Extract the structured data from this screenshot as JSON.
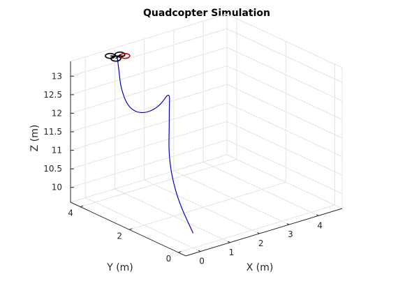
{
  "chart_data": {
    "type": "line3d",
    "title": "Quadcopter Simulation",
    "xlabel": "X (m)",
    "ylabel": "Y (m)",
    "zlabel": "Z (m)",
    "xlim": [
      -0.5,
      4.8
    ],
    "ylim": [
      -0.3,
      4.4
    ],
    "zlim": [
      9.6,
      13.4
    ],
    "xticks": [
      "0",
      "1",
      "2",
      "3",
      "4"
    ],
    "yticks": [
      "0",
      "2",
      "4"
    ],
    "zticks": [
      "10",
      "10.5",
      "11",
      "11.5",
      "12",
      "12.5",
      "13"
    ],
    "grid": true,
    "series": [
      {
        "name": "",
        "color": "#0000cc",
        "points": [
          [
            0,
            0,
            10.0
          ],
          [
            0.2,
            0.8,
            10.5
          ],
          [
            0.6,
            1.6,
            10.9
          ],
          [
            1.0,
            2.2,
            11.3
          ],
          [
            1.35,
            2.6,
            11.7
          ],
          [
            1.6,
            2.9,
            12.1
          ],
          [
            1.7,
            3.0,
            12.5
          ],
          [
            1.25,
            2.9,
            12.2
          ],
          [
            0.75,
            3.0,
            12.1
          ],
          [
            0.45,
            3.2,
            12.3
          ],
          [
            0.5,
            3.55,
            12.7
          ],
          [
            0.65,
            3.8,
            13.0
          ],
          [
            0.75,
            4.0,
            13.35
          ]
        ]
      }
    ],
    "quadcopter": {
      "center": [
        0.75,
        4.0,
        13.35
      ],
      "rotor_colors": [
        "#000000",
        "#000000",
        "#000000",
        "#cc0000"
      ]
    }
  }
}
